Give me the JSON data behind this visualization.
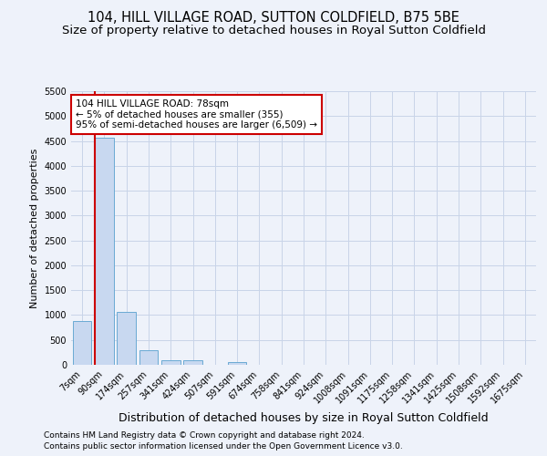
{
  "title1": "104, HILL VILLAGE ROAD, SUTTON COLDFIELD, B75 5BE",
  "title2": "Size of property relative to detached houses in Royal Sutton Coldfield",
  "xlabel": "Distribution of detached houses by size in Royal Sutton Coldfield",
  "ylabel": "Number of detached properties",
  "footnote1": "Contains HM Land Registry data © Crown copyright and database right 2024.",
  "footnote2": "Contains public sector information licensed under the Open Government Licence v3.0.",
  "categories": [
    "7sqm",
    "90sqm",
    "174sqm",
    "257sqm",
    "341sqm",
    "424sqm",
    "507sqm",
    "591sqm",
    "674sqm",
    "758sqm",
    "841sqm",
    "924sqm",
    "1008sqm",
    "1091sqm",
    "1175sqm",
    "1258sqm",
    "1341sqm",
    "1425sqm",
    "1508sqm",
    "1592sqm",
    "1675sqm"
  ],
  "values": [
    880,
    4560,
    1060,
    290,
    100,
    90,
    0,
    60,
    0,
    0,
    0,
    0,
    0,
    0,
    0,
    0,
    0,
    0,
    0,
    0,
    0
  ],
  "bar_color": "#c8d8f0",
  "bar_edge_color": "#6aaad4",
  "vline_color": "#cc0000",
  "vline_pos": 0.55,
  "annotation_text": "104 HILL VILLAGE ROAD: 78sqm\n← 5% of detached houses are smaller (355)\n95% of semi-detached houses are larger (6,509) →",
  "annotation_box_color": "#ffffff",
  "annotation_box_edge": "#cc0000",
  "ylim": [
    0,
    5500
  ],
  "yticks": [
    0,
    500,
    1000,
    1500,
    2000,
    2500,
    3000,
    3500,
    4000,
    4500,
    5000,
    5500
  ],
  "bg_color": "#eef2fa",
  "grid_color": "#c8d4e8",
  "title_fontsize": 10.5,
  "subtitle_fontsize": 9.5,
  "footnote_fontsize": 6.5,
  "ylabel_fontsize": 8,
  "xlabel_fontsize": 9,
  "tick_fontsize": 7,
  "annot_fontsize": 7.5
}
